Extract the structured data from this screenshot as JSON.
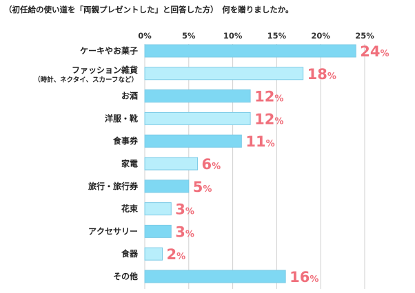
{
  "colors": {
    "bar_a": "#7fd8f3",
    "bar_b": "#b8eefb",
    "bar_stroke": "#7ccbe6",
    "label": "#f0707c",
    "grid": "#cfcfcf"
  },
  "chart_data": {
    "type": "bar",
    "orientation": "horizontal",
    "title": "（初任給の使い道を「両親プレゼントした」と回答した方）　何を贈りましたか。",
    "xlabel": "",
    "ylabel": "",
    "xlim": [
      0,
      25
    ],
    "ticks": [
      "0%",
      "5%",
      "10%",
      "15%",
      "20%",
      "25%"
    ],
    "tick_values": [
      0,
      5,
      10,
      15,
      20,
      25
    ],
    "grid": true,
    "value_unit": "%",
    "categories": [
      {
        "label": "ケーキやお菓子",
        "sub": ""
      },
      {
        "label": "ファッション雑貨",
        "sub": "（時計、ネクタイ、スカーフなど）"
      },
      {
        "label": "お酒",
        "sub": ""
      },
      {
        "label": "洋服・靴",
        "sub": ""
      },
      {
        "label": "食事券",
        "sub": ""
      },
      {
        "label": "家電",
        "sub": ""
      },
      {
        "label": "旅行・旅行券",
        "sub": ""
      },
      {
        "label": "花束",
        "sub": ""
      },
      {
        "label": "アクセサリー",
        "sub": ""
      },
      {
        "label": "食器",
        "sub": ""
      },
      {
        "label": "その他",
        "sub": ""
      }
    ],
    "values": [
      24,
      18,
      12,
      12,
      11,
      6,
      5,
      3,
      3,
      2,
      16
    ]
  }
}
